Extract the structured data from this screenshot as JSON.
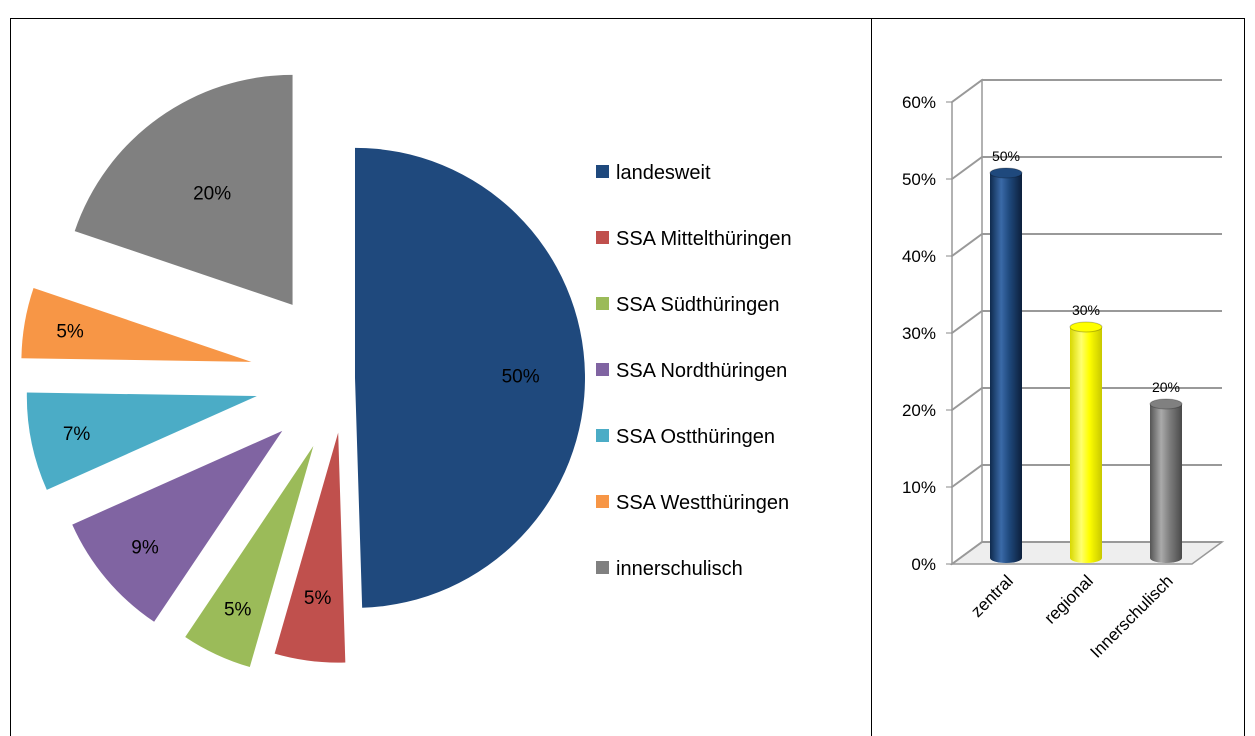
{
  "chart_data": [
    {
      "type": "pie",
      "title": "",
      "categories": [
        "landesweit",
        "SSA Mittelthüringen",
        "SSA Südthüringen",
        "SSA Nordthüringen",
        "SSA Ostthüringen",
        "SSA Westthüringen",
        "innerschulisch"
      ],
      "values": [
        50,
        5,
        5,
        9,
        7,
        5,
        20
      ],
      "labels": [
        "50%",
        "5%",
        "5%",
        "9%",
        "7%",
        "5%",
        "20%"
      ],
      "colors": [
        "#1F497D",
        "#C0504D",
        "#9BBB59",
        "#8064A2",
        "#4BACC6",
        "#F79646",
        "#808080"
      ],
      "legend_position": "right",
      "exploded": true
    },
    {
      "type": "bar",
      "title": "",
      "xlabel": "",
      "ylabel": "",
      "categories": [
        "zentral",
        "regional",
        "Innerschulisch"
      ],
      "values": [
        50,
        30,
        20
      ],
      "labels": [
        "50%",
        "30%",
        "20%"
      ],
      "colors": [
        "#1F497D",
        "#FFFF00",
        "#808080"
      ],
      "ylim": [
        0,
        60
      ],
      "yticks": [
        "0%",
        "10%",
        "20%",
        "30%",
        "40%",
        "50%",
        "60%"
      ],
      "grid": true,
      "style": "3d-cylinder"
    }
  ]
}
